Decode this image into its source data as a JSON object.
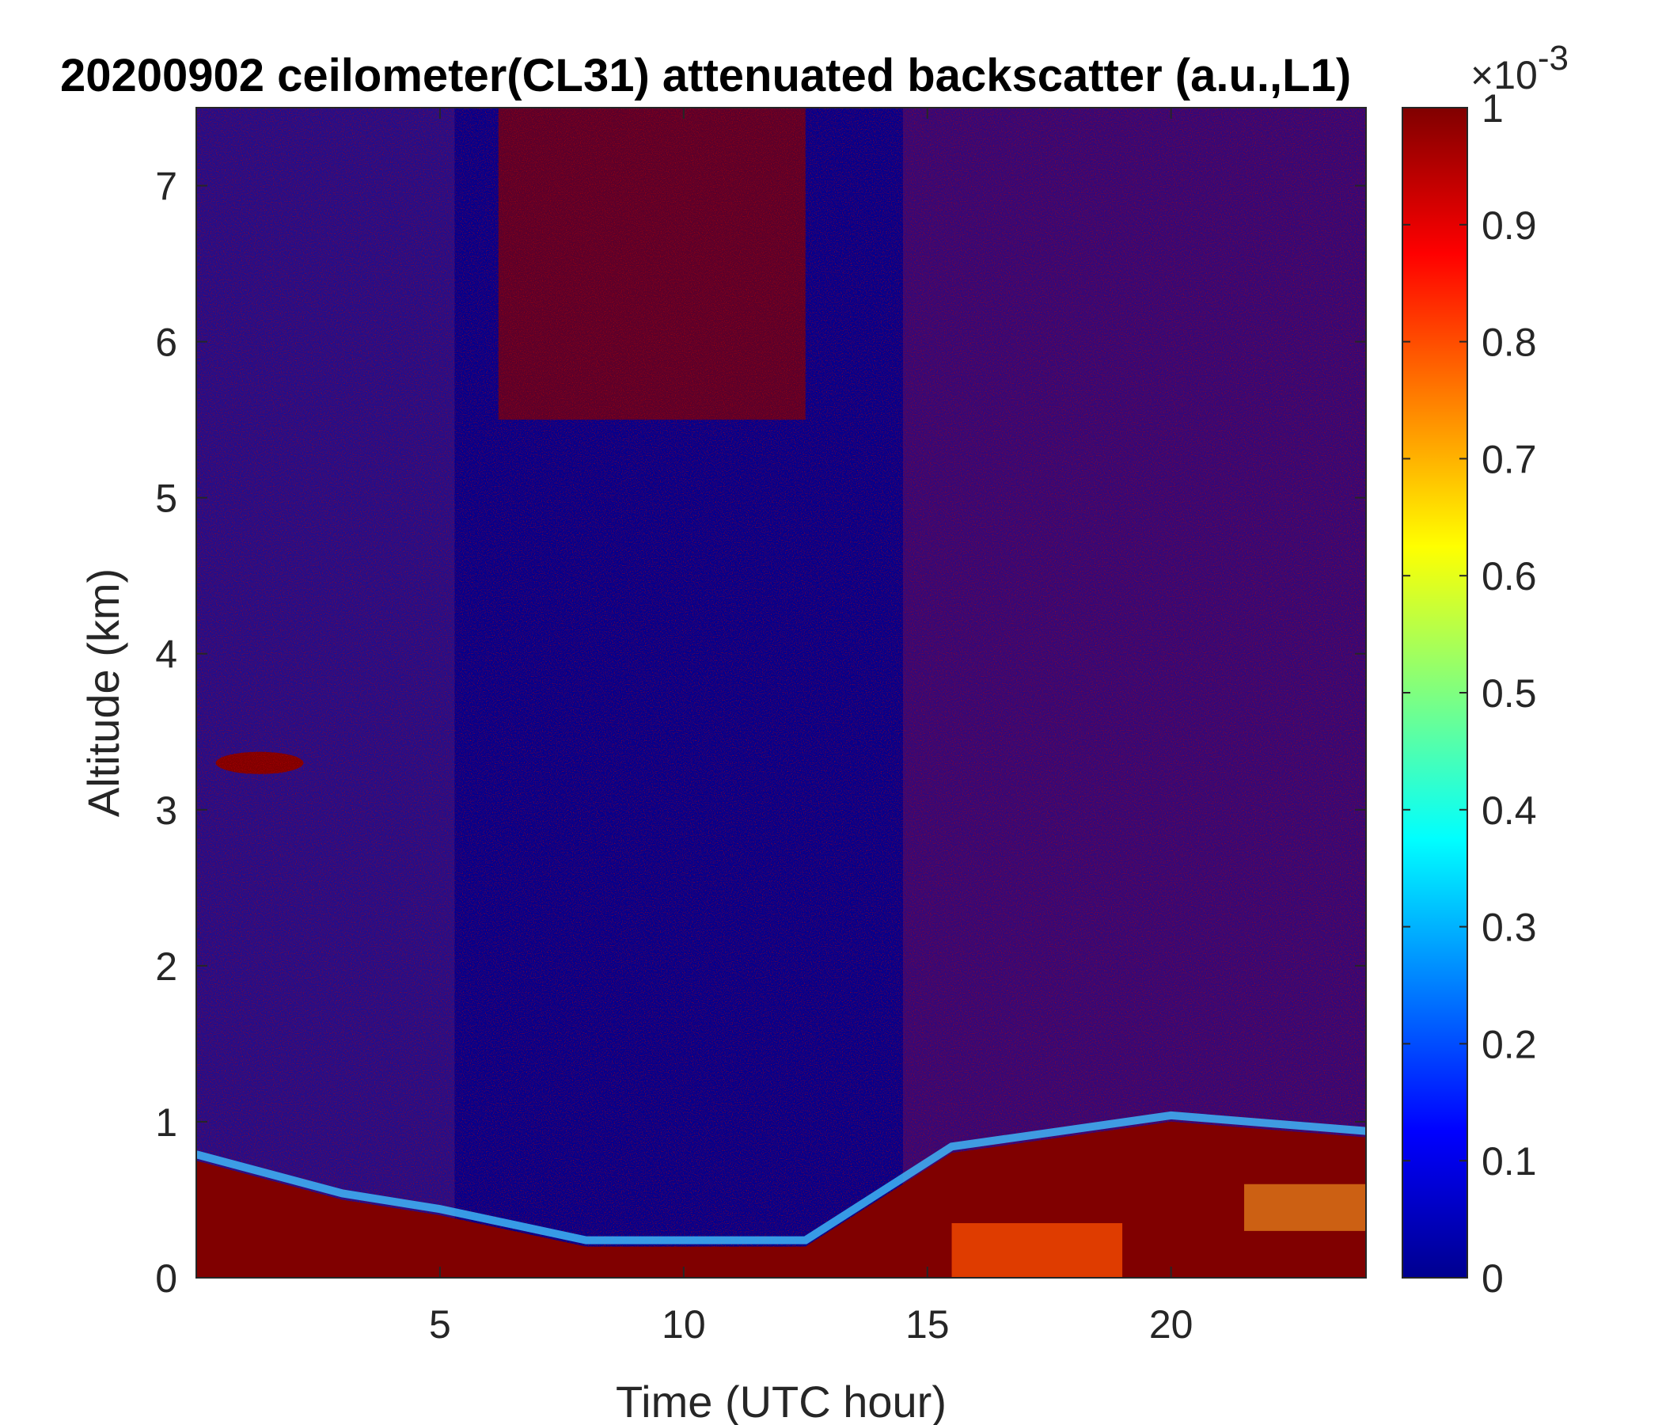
{
  "chart_data": {
    "type": "heatmap",
    "title": "20200902 ceilometer(CL31) attenuated backscatter (a.u.,L1)",
    "xlabel": "Time (UTC hour)",
    "ylabel": "Altitude (km)",
    "xlim": [
      0,
      24
    ],
    "ylim": [
      0,
      7.5
    ],
    "x_ticks": [
      5,
      10,
      15,
      20
    ],
    "y_ticks": [
      0,
      1,
      2,
      3,
      4,
      5,
      6,
      7
    ],
    "colorbar": {
      "colormap": "jet",
      "clim": [
        0,
        0.001
      ],
      "ticks": [
        0,
        0.1,
        0.2,
        0.3,
        0.4,
        0.5,
        0.6,
        0.7,
        0.8,
        0.9,
        1
      ],
      "multiplier_base": "×10",
      "multiplier_exponent": "-3"
    },
    "field_description": {
      "surface_layer_top_km": [
        [
          0,
          0.75
        ],
        [
          3,
          0.5
        ],
        [
          5,
          0.4
        ],
        [
          8,
          0.2
        ],
        [
          12.5,
          0.2
        ],
        [
          14,
          0.5
        ],
        [
          15.5,
          0.8
        ],
        [
          20,
          1.0
        ],
        [
          24,
          0.9
        ]
      ],
      "clear_low_signal_period_hours": [
        5.3,
        14.5
      ],
      "elevated_layer": {
        "time_hours": [
          0.4,
          2.2
        ],
        "altitude_km": 3.3
      }
    }
  }
}
